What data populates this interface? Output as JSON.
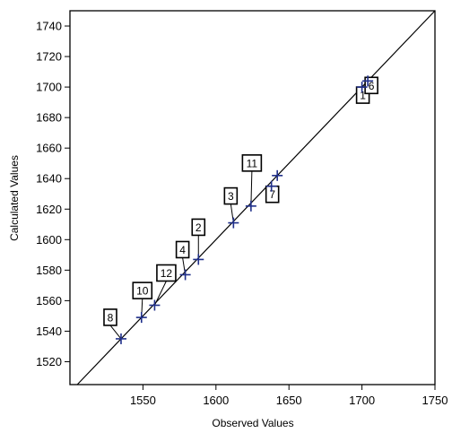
{
  "chart_data": {
    "type": "scatter",
    "xlabel": "Observed Values",
    "ylabel": "Calculated Values",
    "xlim": [
      1500,
      1750
    ],
    "ylim": [
      1505,
      1750
    ],
    "x_ticks": [
      1550,
      1600,
      1650,
      1700,
      1750
    ],
    "x_tick_labels": [
      "1550",
      "1600",
      "1650",
      "1700",
      "1750"
    ],
    "y_ticks": [
      1520,
      1540,
      1560,
      1580,
      1600,
      1620,
      1640,
      1660,
      1680,
      1700,
      1720,
      1740
    ],
    "y_tick_labels": [
      "1520",
      "1540",
      "1560",
      "1580",
      "1600",
      "1620",
      "1640",
      "1660",
      "1680",
      "1700",
      "1720",
      "1740"
    ],
    "grid": false,
    "reference_line": "y = x",
    "colors": {
      "marker": "#1f2f8a",
      "line": "#000000",
      "label_box": "#000000"
    },
    "points": [
      {
        "label": "8",
        "x": 1535,
        "y": 1535
      },
      {
        "label": "10",
        "x": 1549,
        "y": 1549
      },
      {
        "label": "12",
        "x": 1558,
        "y": 1557
      },
      {
        "label": "4",
        "x": 1579,
        "y": 1577
      },
      {
        "label": "2",
        "x": 1588,
        "y": 1587
      },
      {
        "label": "3",
        "x": 1612,
        "y": 1611
      },
      {
        "label": "11",
        "x": 1624,
        "y": 1622
      },
      {
        "label": "7",
        "x": 1638,
        "y": 1635
      },
      {
        "label": "",
        "x": 1642,
        "y": 1642
      },
      {
        "label": "1",
        "x": 1700,
        "y": 1700
      },
      {
        "label": "6",
        "x": 1704,
        "y": 1704
      }
    ]
  }
}
